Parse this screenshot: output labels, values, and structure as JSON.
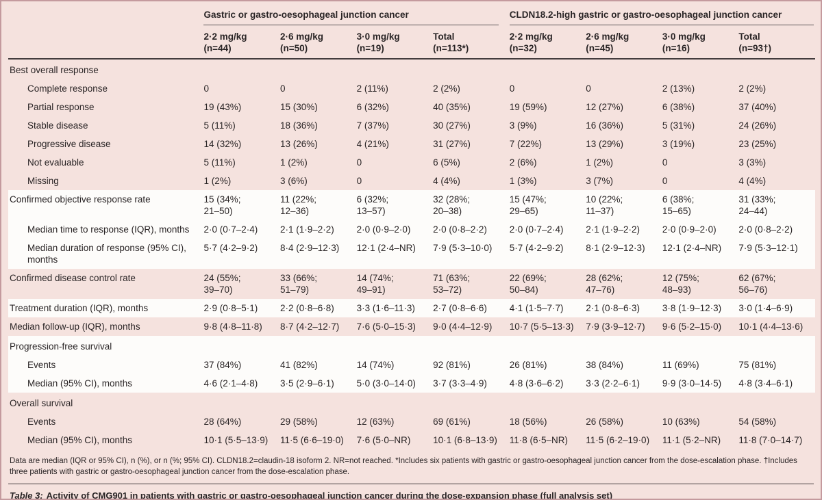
{
  "colors": {
    "background_pink": "#f5e2de",
    "highlight_band": "#fdfcfa",
    "frame_border": "#c49a9e",
    "text": "#292425"
  },
  "table": {
    "group_headers": [
      "Gastric or gastro-oesophageal junction cancer",
      "CLDN18.2-high gastric or gastro-oesophageal junction cancer"
    ],
    "columns": [
      {
        "dose": "2·2 mg/kg",
        "n": "(n=44)"
      },
      {
        "dose": "2·6 mg/kg",
        "n": "(n=50)"
      },
      {
        "dose": "3·0 mg/kg",
        "n": "(n=19)"
      },
      {
        "dose": "Total",
        "n": "(n=113*)"
      },
      {
        "dose": "2·2 mg/kg",
        "n": "(n=32)"
      },
      {
        "dose": "2·6 mg/kg",
        "n": "(n=45)"
      },
      {
        "dose": "3·0 mg/kg",
        "n": "(n=16)"
      },
      {
        "dose": "Total",
        "n": "(n=93†)"
      }
    ],
    "rows": [
      {
        "label": "Best overall response",
        "indent": 0,
        "band": "pink",
        "section": true,
        "values": [
          "",
          "",
          "",
          "",
          "",
          "",
          "",
          ""
        ]
      },
      {
        "label": "Complete response",
        "indent": 1,
        "band": "pink",
        "values": [
          "0",
          "0",
          "2 (11%)",
          "2 (2%)",
          "0",
          "0",
          "2 (13%)",
          "2 (2%)"
        ]
      },
      {
        "label": "Partial response",
        "indent": 1,
        "band": "pink",
        "values": [
          "19 (43%)",
          "15 (30%)",
          "6 (32%)",
          "40 (35%)",
          "19 (59%)",
          "12 (27%)",
          "6 (38%)",
          "37 (40%)"
        ]
      },
      {
        "label": "Stable disease",
        "indent": 1,
        "band": "pink",
        "values": [
          "5 (11%)",
          "18 (36%)",
          "7 (37%)",
          "30 (27%)",
          "3 (9%)",
          "16 (36%)",
          "5 (31%)",
          "24 (26%)"
        ]
      },
      {
        "label": "Progressive disease",
        "indent": 1,
        "band": "pink",
        "values": [
          "14 (32%)",
          "13 (26%)",
          "4 (21%)",
          "31 (27%)",
          "7 (22%)",
          "13 (29%)",
          "3 (19%)",
          "23 (25%)"
        ]
      },
      {
        "label": "Not evaluable",
        "indent": 1,
        "band": "pink",
        "values": [
          "5 (11%)",
          "1 (2%)",
          "0",
          "6 (5%)",
          "2 (6%)",
          "1 (2%)",
          "0",
          "3 (3%)"
        ]
      },
      {
        "label": "Missing",
        "indent": 1,
        "band": "pink",
        "values": [
          "1 (2%)",
          "3 (6%)",
          "0",
          "4 (4%)",
          "1 (3%)",
          "3 (7%)",
          "0",
          "4 (4%)"
        ]
      },
      {
        "label": "Confirmed objective response rate",
        "indent": 0,
        "band": "white",
        "values": [
          "15 (34%;\n21–50)",
          "11 (22%;\n12–36)",
          "6 (32%;\n13–57)",
          "32 (28%;\n20–38)",
          "15 (47%;\n29–65)",
          "10 (22%;\n11–37)",
          "6 (38%;\n15–65)",
          "31 (33%;\n24–44)"
        ]
      },
      {
        "label": "Median time to response (IQR), months",
        "indent": 1,
        "band": "white",
        "values": [
          "2·0 (0·7–2·4)",
          "2·1 (1·9–2·2)",
          "2·0 (0·9–2·0)",
          "2·0 (0·8–2·2)",
          "2·0 (0·7–2·4)",
          "2·1 (1·9–2·2)",
          "2·0 (0·9–2·0)",
          "2·0 (0·8–2·2)"
        ]
      },
      {
        "label": "Median duration of response (95% CI),\nmonths",
        "indent": 1,
        "band": "white",
        "values": [
          "5·7 (4·2–9·2)",
          "8·4 (2·9–12·3)",
          "12·1 (2·4–NR)",
          "7·9 (5·3–10·0)",
          "5·7 (4·2–9·2)",
          "8·1 (2·9–12·3)",
          "12·1 (2·4–NR)",
          "7·9 (5·3–12·1)"
        ]
      },
      {
        "label": "Confirmed disease control rate",
        "indent": 0,
        "band": "pink",
        "values": [
          "24 (55%;\n39–70)",
          "33 (66%;\n51–79)",
          "14 (74%;\n49–91)",
          "71 (63%;\n53–72)",
          "22 (69%;\n50–84)",
          "28 (62%;\n47–76)",
          "12 (75%;\n48–93)",
          "62 (67%;\n56–76)"
        ]
      },
      {
        "label": "Treatment duration (IQR), months",
        "indent": 0,
        "band": "white",
        "values": [
          "2·9 (0·8–5·1)",
          "2·2 (0·8–6·8)",
          "3·3 (1·6–11·3)",
          "2·7 (0·8–6·6)",
          "4·1 (1·5–7·7)",
          "2·1 (0·8–6·3)",
          "3·8 (1·9–12·3)",
          "3·0 (1·4–6·9)"
        ]
      },
      {
        "label": "Median follow-up (IQR), months",
        "indent": 0,
        "band": "pink",
        "values": [
          "9·8 (4·8–11·8)",
          "8·7 (4·2–12·7)",
          "7·6 (5·0–15·3)",
          "9·0 (4·4–12·9)",
          "10·7 (5·5–13·3)",
          "7·9 (3·9–12·7)",
          "9·6 (5·2–15·0)",
          "10·1 (4·4–13·6)"
        ]
      },
      {
        "label": "Progression-free survival",
        "indent": 0,
        "band": "white",
        "section": true,
        "values": [
          "",
          "",
          "",
          "",
          "",
          "",
          "",
          ""
        ]
      },
      {
        "label": "Events",
        "indent": 1,
        "band": "white",
        "values": [
          "37 (84%)",
          "41 (82%)",
          "14 (74%)",
          "92 (81%)",
          "26 (81%)",
          "38 (84%)",
          "11 (69%)",
          "75 (81%)"
        ]
      },
      {
        "label": "Median (95% CI), months",
        "indent": 1,
        "band": "white",
        "values": [
          "4·6 (2·1–4·8)",
          "3·5 (2·9–6·1)",
          "5·0 (3·0–14·0)",
          "3·7 (3·3–4·9)",
          "4·8 (3·6–6·2)",
          "3·3 (2·2–6·1)",
          "9·9 (3·0–14·5)",
          "4·8 (3·4–6·1)"
        ]
      },
      {
        "label": "Overall survival",
        "indent": 0,
        "band": "pink",
        "section": true,
        "values": [
          "",
          "",
          "",
          "",
          "",
          "",
          "",
          ""
        ]
      },
      {
        "label": "Events",
        "indent": 1,
        "band": "pink",
        "values": [
          "28 (64%)",
          "29 (58%)",
          "12 (63%)",
          "69 (61%)",
          "18 (56%)",
          "26 (58%)",
          "10 (63%)",
          "54 (58%)"
        ]
      },
      {
        "label": "Median (95% CI), months",
        "indent": 1,
        "band": "pink",
        "values": [
          "10·1 (5·5–13·9)",
          "11·5 (6·6–19·0)",
          "7·6 (5·0–NR)",
          "10·1 (6·8–13·9)",
          "11·8 (6·5–NR)",
          "11·5 (6·2–19·0)",
          "11·1 (5·2–NR)",
          "11·8 (7·0–14·7)"
        ]
      }
    ]
  },
  "footnote": "Data are median (IQR or 95% CI), n (%), or n (%; 95% CI). CLDN18.2=claudin-18 isoform 2. NR=not reached. *Includes six patients with gastric or gastro-oesophageal junction cancer from the dose-escalation phase. †Includes three patients with gastric or gastro-oesophageal junction cancer from the dose-escalation phase.",
  "caption": {
    "prefix": "Table 3:",
    "text": "Activity of CMG901 in patients with gastric or gastro-oesophageal junction cancer during the dose-expansion phase (full analysis set)"
  }
}
